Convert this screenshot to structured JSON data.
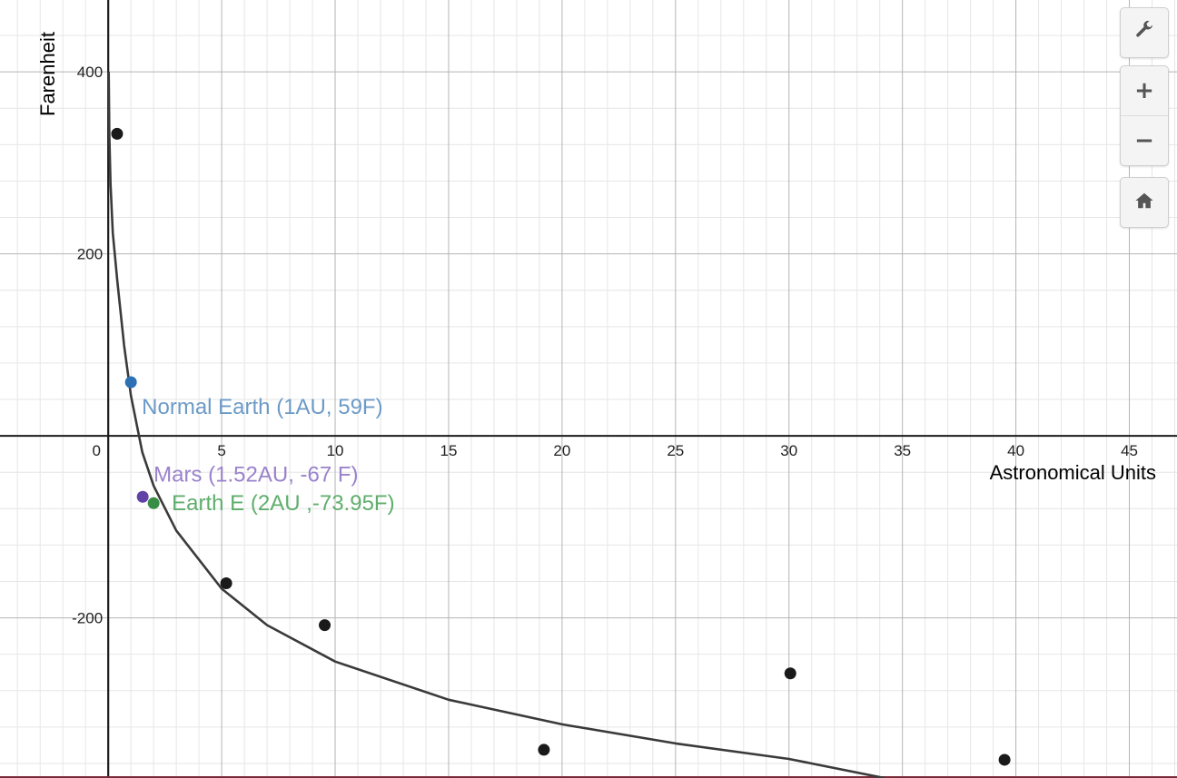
{
  "controls": {
    "settings_icon": "wrench-icon",
    "zoom_in": "+",
    "zoom_out": "−",
    "home_icon": "home-icon"
  },
  "chart_data": {
    "type": "scatter",
    "xlabel": "Astronomical Units",
    "ylabel": "Farenheit",
    "xlim": [
      -4.77,
      47.1
    ],
    "ylim": [
      -376,
      479
    ],
    "grid": true,
    "x_ticks": [
      0,
      5,
      10,
      15,
      20,
      25,
      30,
      35,
      40,
      45
    ],
    "x_tick_labels": [
      "0",
      "5",
      "10",
      "15",
      "20",
      "25",
      "30",
      "35",
      "40",
      "45"
    ],
    "y_ticks": [
      400,
      200,
      -200
    ],
    "y_tick_labels": [
      "400",
      "200",
      "-200"
    ],
    "series": [
      {
        "color": "#1a1a1a",
        "points": [
          {
            "x": 0.39,
            "y": 332
          },
          {
            "x": 5.2,
            "y": -162
          },
          {
            "x": 9.54,
            "y": -208
          },
          {
            "x": 19.2,
            "y": -345
          },
          {
            "x": 30.06,
            "y": -261
          },
          {
            "x": 39.5,
            "y": -356
          }
        ]
      },
      {
        "color": "#2d70b3",
        "label_color": "#6c9ac7",
        "label": "Normal Earth (1AU, 59F)",
        "points": [
          {
            "x": 1,
            "y": 59
          }
        ]
      },
      {
        "color": "#6042a6",
        "label_color": "#9a82cc",
        "label": "Mars (1.52AU, -67 F)",
        "points": [
          {
            "x": 1.52,
            "y": -67
          }
        ]
      },
      {
        "color": "#388c46",
        "label_color": "#5fae6c",
        "label": "Earth E (2AU ,-73.95F)",
        "points": [
          {
            "x": 2,
            "y": -73.95
          }
        ]
      }
    ],
    "curve": {
      "type": "line",
      "color": "#3a3a3a",
      "points": [
        {
          "x": 0.02,
          "y": 400
        },
        {
          "x": 0.05,
          "y": 330
        },
        {
          "x": 0.1,
          "y": 277
        },
        {
          "x": 0.2,
          "y": 223
        },
        {
          "x": 0.4,
          "y": 170
        },
        {
          "x": 0.7,
          "y": 99
        },
        {
          "x": 1,
          "y": 44
        },
        {
          "x": 1.5,
          "y": -18
        },
        {
          "x": 2,
          "y": -55
        },
        {
          "x": 3,
          "y": -104
        },
        {
          "x": 5,
          "y": -168
        },
        {
          "x": 7,
          "y": -208
        },
        {
          "x": 10,
          "y": -248
        },
        {
          "x": 15,
          "y": -290
        },
        {
          "x": 20,
          "y": -317
        },
        {
          "x": 25,
          "y": -338
        },
        {
          "x": 30,
          "y": -355
        },
        {
          "x": 34.2,
          "y": -376
        }
      ]
    }
  }
}
